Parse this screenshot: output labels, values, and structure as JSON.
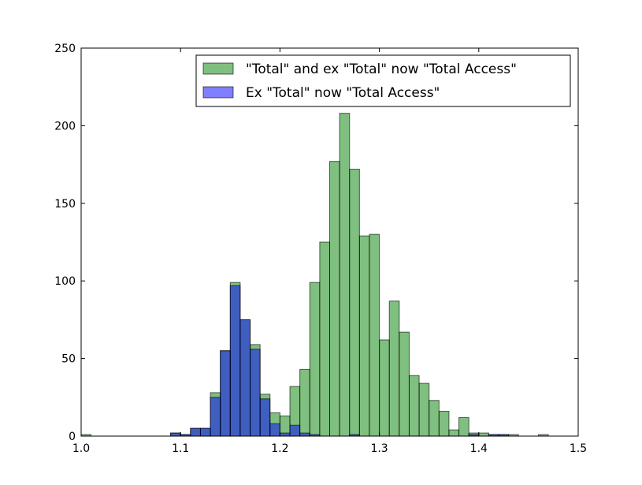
{
  "chart_data": {
    "type": "bar",
    "title": "",
    "xlabel": "",
    "ylabel": "",
    "xlim": [
      1.0,
      1.5
    ],
    "ylim": [
      0,
      250
    ],
    "xticks": [
      "1.0",
      "1.1",
      "1.2",
      "1.3",
      "1.4",
      "1.5"
    ],
    "yticks": [
      "0",
      "50",
      "100",
      "150",
      "200",
      "250"
    ],
    "grid": false,
    "legend_position": "top-right",
    "bin_width": 0.01,
    "series": [
      {
        "name": "\"Total\" and ex \"Total\" now \"Total Access\"",
        "color": "#008000",
        "opacity": 0.5,
        "bins": [
          {
            "x": 1.0,
            "y": 1
          },
          {
            "x": 1.09,
            "y": 2
          },
          {
            "x": 1.1,
            "y": 1
          },
          {
            "x": 1.11,
            "y": 5
          },
          {
            "x": 1.12,
            "y": 5
          },
          {
            "x": 1.13,
            "y": 28
          },
          {
            "x": 1.14,
            "y": 55
          },
          {
            "x": 1.15,
            "y": 99
          },
          {
            "x": 1.16,
            "y": 75
          },
          {
            "x": 1.17,
            "y": 59
          },
          {
            "x": 1.18,
            "y": 27
          },
          {
            "x": 1.19,
            "y": 15
          },
          {
            "x": 1.2,
            "y": 13
          },
          {
            "x": 1.21,
            "y": 32
          },
          {
            "x": 1.22,
            "y": 43
          },
          {
            "x": 1.23,
            "y": 99
          },
          {
            "x": 1.24,
            "y": 125
          },
          {
            "x": 1.25,
            "y": 177
          },
          {
            "x": 1.26,
            "y": 208
          },
          {
            "x": 1.27,
            "y": 172
          },
          {
            "x": 1.28,
            "y": 129
          },
          {
            "x": 1.29,
            "y": 130
          },
          {
            "x": 1.3,
            "y": 62
          },
          {
            "x": 1.31,
            "y": 87
          },
          {
            "x": 1.32,
            "y": 67
          },
          {
            "x": 1.33,
            "y": 39
          },
          {
            "x": 1.34,
            "y": 34
          },
          {
            "x": 1.35,
            "y": 23
          },
          {
            "x": 1.36,
            "y": 16
          },
          {
            "x": 1.37,
            "y": 4
          },
          {
            "x": 1.38,
            "y": 12
          },
          {
            "x": 1.39,
            "y": 2
          },
          {
            "x": 1.4,
            "y": 2
          },
          {
            "x": 1.41,
            "y": 1
          },
          {
            "x": 1.42,
            "y": 1
          },
          {
            "x": 1.43,
            "y": 1
          },
          {
            "x": 1.46,
            "y": 1
          }
        ]
      },
      {
        "name": "Ex \"Total\" now \"Total Access\"",
        "color": "#0000FF",
        "opacity": 0.5,
        "bins": [
          {
            "x": 1.09,
            "y": 2
          },
          {
            "x": 1.1,
            "y": 1
          },
          {
            "x": 1.11,
            "y": 5
          },
          {
            "x": 1.12,
            "y": 5
          },
          {
            "x": 1.13,
            "y": 25
          },
          {
            "x": 1.14,
            "y": 55
          },
          {
            "x": 1.15,
            "y": 97
          },
          {
            "x": 1.16,
            "y": 75
          },
          {
            "x": 1.17,
            "y": 56
          },
          {
            "x": 1.18,
            "y": 24
          },
          {
            "x": 1.19,
            "y": 8
          },
          {
            "x": 1.2,
            "y": 2
          },
          {
            "x": 1.21,
            "y": 7
          },
          {
            "x": 1.22,
            "y": 2
          },
          {
            "x": 1.23,
            "y": 1
          },
          {
            "x": 1.27,
            "y": 1
          },
          {
            "x": 1.39,
            "y": 1
          },
          {
            "x": 1.41,
            "y": 1
          },
          {
            "x": 1.42,
            "y": 1
          }
        ]
      }
    ]
  }
}
